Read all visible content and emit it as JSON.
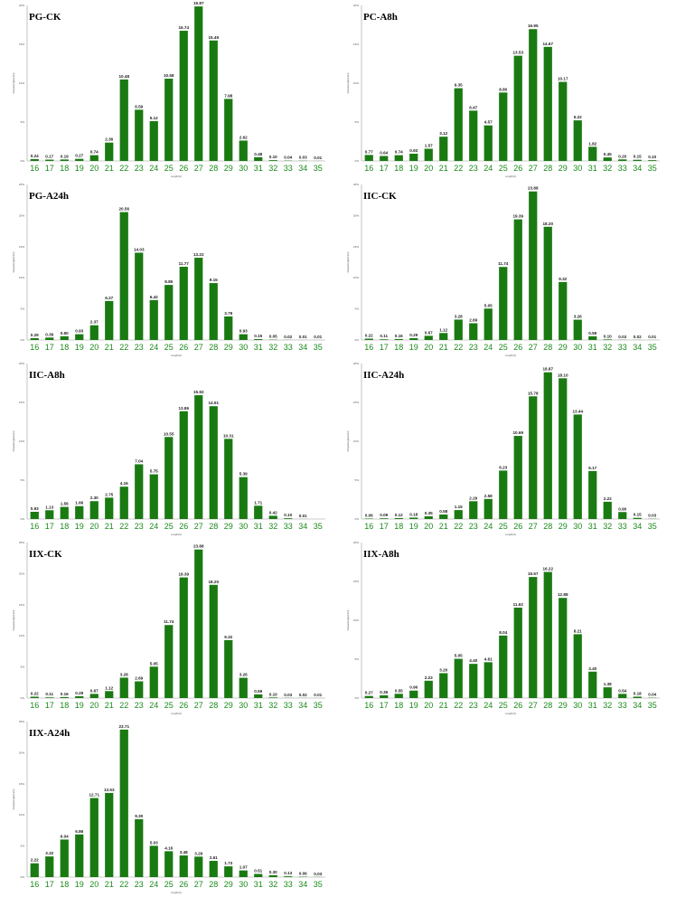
{
  "colors": {
    "bar": "#1a7a12",
    "tick_label": "#1a8a1a",
    "axis": "#9a9a9a"
  },
  "chart_data": [
    {
      "type": "bar",
      "title": "PG-CK",
      "xlabel": "Length(nt)",
      "ylabel": "Frequency(percent)",
      "categories": [
        "16",
        "17",
        "18",
        "19",
        "20",
        "21",
        "22",
        "23",
        "24",
        "25",
        "26",
        "27",
        "28",
        "29",
        "30",
        "31",
        "32",
        "33",
        "34",
        "35"
      ],
      "values": [
        0.24,
        0.17,
        0.19,
        0.27,
        0.74,
        2.36,
        10.48,
        6.59,
        5.12,
        10.58,
        16.74,
        19.87,
        15.49,
        7.98,
        2.62,
        0.48,
        0.1,
        0.04,
        0.03,
        0.01
      ],
      "value_labels": [
        "0.24",
        "0.17",
        "0.19",
        "0.27",
        "0.74",
        "2.36",
        "10.48",
        "6.59",
        "5.12",
        "10.58",
        "16.74",
        "19.87",
        "15.49",
        "7.98",
        "2.62",
        "0.48",
        "0.10",
        "0.04",
        "0.03",
        "0.01"
      ],
      "ylim": [
        0,
        20
      ],
      "yticks": [
        "0%",
        "5%",
        "10%",
        "15%",
        "20%"
      ]
    },
    {
      "type": "bar",
      "title": "PC-A8h",
      "xlabel": "Length(nt)",
      "ylabel": "Frequency(percent)",
      "categories": [
        "16",
        "17",
        "18",
        "19",
        "20",
        "21",
        "22",
        "23",
        "24",
        "25",
        "26",
        "27",
        "28",
        "29",
        "30",
        "31",
        "32",
        "33",
        "34",
        "35"
      ],
      "values": [
        0.77,
        0.64,
        0.74,
        0.93,
        1.57,
        3.12,
        9.35,
        6.47,
        4.57,
        8.8,
        13.53,
        16.95,
        14.67,
        10.17,
        5.22,
        1.82,
        0.45,
        0.2,
        0.15,
        0.1
      ],
      "value_labels": [
        "0.77",
        "0.64",
        "0.74",
        "0.93",
        "1.57",
        "3.12",
        "9.35",
        "6.47",
        "4.57",
        "8.80",
        "13.53",
        "16.95",
        "14.67",
        "10.17",
        "5.22",
        "1.82",
        "0.45",
        "0.20",
        "0.15",
        "0.10"
      ],
      "ylim": [
        0,
        20
      ],
      "yticks": [
        "0%",
        "5%",
        "10%",
        "15%",
        "20%"
      ]
    },
    {
      "type": "bar",
      "title": "PG-A24h",
      "xlabel": "Length(nt)",
      "ylabel": "Frequency(percent)",
      "categories": [
        "16",
        "17",
        "18",
        "19",
        "20",
        "21",
        "22",
        "23",
        "24",
        "25",
        "26",
        "27",
        "28",
        "29",
        "30",
        "31",
        "32",
        "33",
        "34",
        "35"
      ],
      "values": [
        0.29,
        0.39,
        0.6,
        0.93,
        2.37,
        6.27,
        20.56,
        14.03,
        6.42,
        8.85,
        11.77,
        13.22,
        9.15,
        3.79,
        0.93,
        0.15,
        0.05,
        0.02,
        0.01,
        0.01
      ],
      "value_labels": [
        "0.29",
        "0.39",
        "0.60",
        "0.93",
        "2.37",
        "6.27",
        "20.56",
        "14.03",
        "6.42",
        "8.85",
        "11.77",
        "13.22",
        "9.15",
        "3.79",
        "0.93",
        "0.15",
        "0.05",
        "0.02",
        "0.01",
        "0.01"
      ],
      "ylim": [
        0,
        25
      ],
      "yticks": [
        "0%",
        "5%",
        "10%",
        "15%",
        "20%",
        "25%"
      ]
    },
    {
      "type": "bar",
      "title": "IIC-CK",
      "xlabel": "Length(nt)",
      "ylabel": "Frequency(percent)",
      "categories": [
        "16",
        "17",
        "18",
        "19",
        "20",
        "21",
        "22",
        "23",
        "24",
        "25",
        "26",
        "27",
        "28",
        "29",
        "30",
        "31",
        "32",
        "33",
        "34",
        "35"
      ],
      "values": [
        0.22,
        0.11,
        0.16,
        0.29,
        0.67,
        1.12,
        3.28,
        2.69,
        5.05,
        11.74,
        19.39,
        23.88,
        18.2,
        9.32,
        3.26,
        0.59,
        0.1,
        0.03,
        0.02,
        0.01
      ],
      "value_labels": [
        "0.22",
        "0.11",
        "0.16",
        "0.29",
        "0.67",
        "1.12",
        "3.28",
        "2.69",
        "5.05",
        "11.74",
        "19.39",
        "23.88",
        "18.20",
        "9.32",
        "3.26",
        "0.59",
        "0.10",
        "0.03",
        "0.02",
        "0.01"
      ],
      "ylim": [
        0,
        25
      ],
      "yticks": [
        "0%",
        "5%",
        "10%",
        "15%",
        "20%",
        "25%"
      ]
    },
    {
      "type": "bar",
      "title": "IIC-A8h",
      "xlabel": "Length(nt)",
      "ylabel": "Frequency(percent)",
      "categories": [
        "16",
        "17",
        "18",
        "19",
        "20",
        "21",
        "22",
        "23",
        "24",
        "25",
        "26",
        "27",
        "28",
        "29",
        "30",
        "31",
        "32",
        "33",
        "34",
        "35"
      ],
      "values": [
        0.93,
        1.13,
        1.56,
        1.66,
        2.3,
        2.75,
        4.16,
        7.04,
        5.75,
        10.55,
        13.86,
        15.92,
        14.51,
        10.31,
        5.39,
        1.71,
        0.42,
        0.1,
        0.01,
        0.0
      ],
      "value_labels": [
        "0.93",
        "1.13",
        "1.56",
        "1.66",
        "2.30",
        "2.75",
        "4.16",
        "7.04",
        "5.75",
        "10.55",
        "13.86",
        "15.92",
        "14.51",
        "10.31",
        "5.39",
        "1.71",
        "0.42",
        "0.10",
        "0.01",
        ""
      ],
      "ylim": [
        0,
        20
      ],
      "yticks": [
        "0%",
        "5%",
        "10%",
        "15%",
        "20%"
      ]
    },
    {
      "type": "bar",
      "title": "IIC-A24h",
      "xlabel": "Length(nt)",
      "ylabel": "Frequency(percent)",
      "categories": [
        "16",
        "17",
        "18",
        "19",
        "20",
        "21",
        "22",
        "23",
        "24",
        "25",
        "26",
        "27",
        "28",
        "29",
        "30",
        "31",
        "32",
        "33",
        "34",
        "35"
      ],
      "values": [
        0.06,
        0.09,
        0.12,
        0.18,
        0.35,
        0.58,
        1.15,
        2.29,
        2.58,
        6.23,
        10.69,
        15.78,
        18.87,
        18.1,
        13.44,
        6.17,
        2.22,
        0.9,
        0.15,
        0.03
      ],
      "value_labels": [
        "0.06",
        "0.09",
        "0.12",
        "0.18",
        "0.35",
        "0.58",
        "1.15",
        "2.29",
        "2.58",
        "6.23",
        "10.69",
        "15.78",
        "18.87",
        "18.10",
        "13.44",
        "6.17",
        "2.22",
        "0.90",
        "0.15",
        "0.03"
      ],
      "ylim": [
        0,
        20
      ],
      "yticks": [
        "0%",
        "5%",
        "10%",
        "15%",
        "20%"
      ]
    },
    {
      "type": "bar",
      "title": "IIX-CK",
      "xlabel": "Length(nt)",
      "ylabel": "Frequency(percent)",
      "categories": [
        "16",
        "17",
        "18",
        "19",
        "20",
        "21",
        "22",
        "23",
        "24",
        "25",
        "26",
        "27",
        "28",
        "29",
        "30",
        "31",
        "32",
        "33",
        "34",
        "35"
      ],
      "values": [
        0.22,
        0.11,
        0.16,
        0.29,
        0.67,
        1.12,
        3.28,
        2.69,
        5.05,
        11.74,
        19.39,
        23.88,
        18.2,
        9.32,
        3.26,
        0.59,
        0.1,
        0.03,
        0.02,
        0.01
      ],
      "value_labels": [
        "0.22",
        "0.11",
        "0.16",
        "0.29",
        "0.67",
        "1.12",
        "3.28",
        "2.69",
        "5.05",
        "11.74",
        "19.39",
        "23.88",
        "18.20",
        "9.32",
        "3.26",
        "0.59",
        "0.10",
        "0.03",
        "0.02",
        "0.01"
      ],
      "ylim": [
        0,
        25
      ],
      "yticks": [
        "0%",
        "5%",
        "10%",
        "15%",
        "20%",
        "25%"
      ]
    },
    {
      "type": "bar",
      "title": "IIX-A8h",
      "xlabel": "Length(nt)",
      "ylabel": "Frequency(percent)",
      "categories": [
        "16",
        "17",
        "18",
        "19",
        "20",
        "21",
        "22",
        "23",
        "24",
        "25",
        "26",
        "27",
        "28",
        "29",
        "30",
        "31",
        "32",
        "33",
        "34",
        "35"
      ],
      "values": [
        0.27,
        0.35,
        0.55,
        0.96,
        2.23,
        3.2,
        5.05,
        4.4,
        4.61,
        8.04,
        11.63,
        15.57,
        16.22,
        12.88,
        8.21,
        3.4,
        1.38,
        0.54,
        0.18,
        0.04
      ],
      "value_labels": [
        "0.27",
        "0.35",
        "0.55",
        "0.96",
        "2.23",
        "3.20",
        "5.05",
        "4.40",
        "4.61",
        "8.04",
        "11.63",
        "15.57",
        "16.22",
        "12.88",
        "8.21",
        "3.40",
        "1.38",
        "0.54",
        "0.18",
        "0.04"
      ],
      "ylim": [
        0,
        20
      ],
      "yticks": [
        "0%",
        "5%",
        "10%",
        "15%",
        "20%"
      ]
    },
    {
      "type": "bar",
      "title": "IIX-A24h",
      "xlabel": "Length(nt)",
      "ylabel": "Frequency(percent)",
      "categories": [
        "16",
        "17",
        "18",
        "19",
        "20",
        "21",
        "22",
        "23",
        "24",
        "25",
        "26",
        "27",
        "28",
        "29",
        "30",
        "31",
        "32",
        "33",
        "34",
        "35"
      ],
      "values": [
        2.22,
        3.32,
        6.04,
        6.86,
        12.71,
        13.53,
        23.71,
        9.3,
        5.03,
        4.16,
        3.48,
        3.29,
        2.61,
        1.73,
        1.07,
        0.51,
        0.3,
        0.13,
        0.06,
        0.03
      ],
      "value_labels": [
        "2.22",
        "3.32",
        "6.04",
        "6.86",
        "12.71",
        "13.53",
        "23.71",
        "9.30",
        "5.03",
        "4.16",
        "3.48",
        "3.29",
        "2.61",
        "1.73",
        "1.07",
        "0.51",
        "0.30",
        "0.13",
        "0.06",
        "0.03"
      ],
      "ylim": [
        0,
        25
      ],
      "yticks": [
        "0%",
        "5%",
        "10%",
        "15%",
        "20%",
        "25%"
      ]
    }
  ]
}
